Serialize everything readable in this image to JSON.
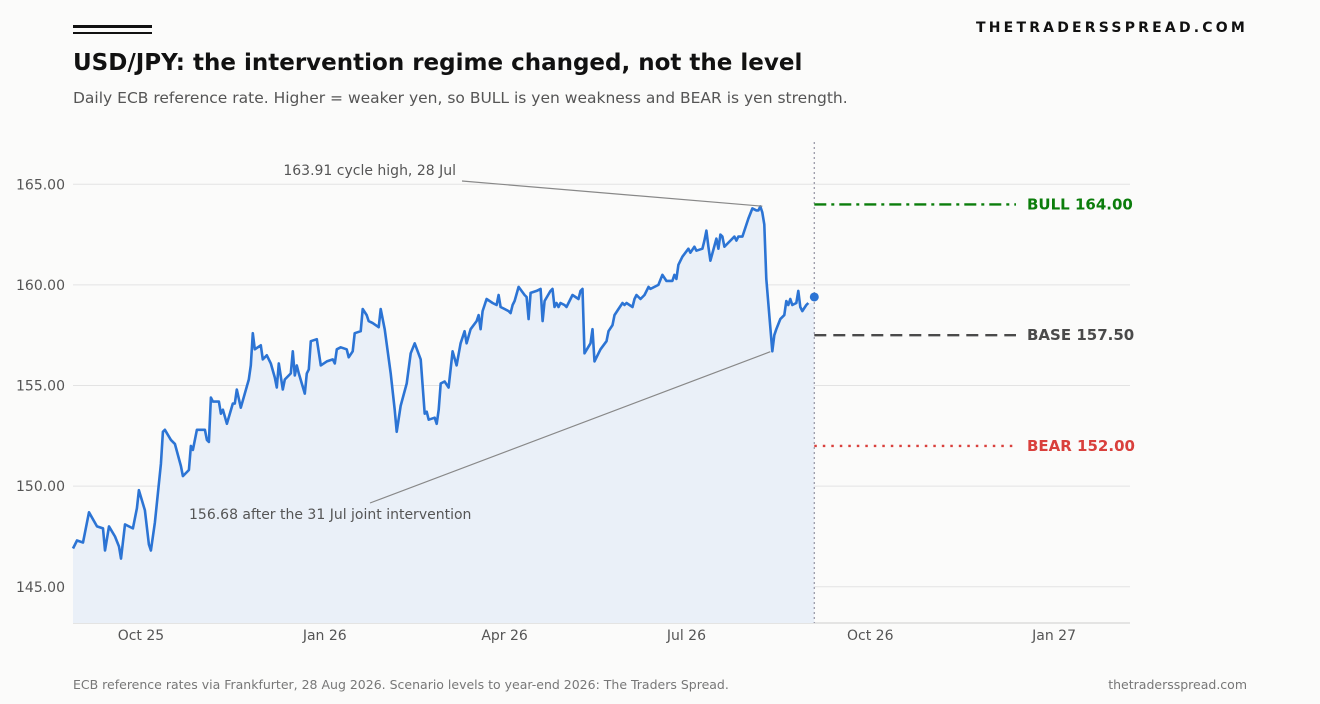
{
  "header": {
    "brand": "THETRADERSSPREAD.COM",
    "title": "USD/JPY: the intervention regime changed, not the level",
    "subtitle": "Daily ECB reference rate. Higher = weaker yen, so BULL is yen weakness and BEAR is yen strength."
  },
  "footer": {
    "source": "ECB reference rates via Frankfurter, 28 Aug 2026. Scenario levels to year-end 2026: The Traders Spread.",
    "site": "thetradersspread.com"
  },
  "colors": {
    "line": "#2c74d4",
    "fill": "#eaf0f8",
    "bull": "#0b7d0b",
    "base": "#4a4a4a",
    "bear": "#d9403c",
    "grid": "#e3e3e3",
    "annotation": "#888888"
  },
  "chart_data": {
    "type": "line",
    "x_axis": {
      "ticks": [
        {
          "date": "2025-10-01",
          "label": "Oct 25"
        },
        {
          "date": "2026-01-01",
          "label": "Jan 26"
        },
        {
          "date": "2026-04-01",
          "label": "Apr 26"
        },
        {
          "date": "2026-07-01",
          "label": "Jul 26"
        },
        {
          "date": "2026-10-01",
          "label": "Oct 26"
        },
        {
          "date": "2027-01-01",
          "label": "Jan 27"
        }
      ],
      "range": [
        "2025-08-28",
        "2027-02-08"
      ]
    },
    "y_axis": {
      "ticks": [
        {
          "value": 145,
          "label": "145.00"
        },
        {
          "value": 150,
          "label": "150.00"
        },
        {
          "value": 155,
          "label": "155.00"
        },
        {
          "value": 160,
          "label": "160.00"
        },
        {
          "value": 165,
          "label": "165.00"
        }
      ],
      "ylim": [
        143.2,
        167.1
      ],
      "grid": true
    },
    "series": [
      {
        "points": [
          [
            "2025-08-28",
            146.9
          ],
          [
            "2025-08-30",
            147.3
          ],
          [
            "2025-09-02",
            147.2
          ],
          [
            "2025-09-05",
            148.7
          ],
          [
            "2025-09-09",
            148.0
          ],
          [
            "2025-09-12",
            147.9
          ],
          [
            "2025-09-13",
            146.8
          ],
          [
            "2025-09-15",
            148.0
          ],
          [
            "2025-09-18",
            147.5
          ],
          [
            "2025-09-20",
            147.0
          ],
          [
            "2025-09-21",
            146.4
          ],
          [
            "2025-09-23",
            148.1
          ],
          [
            "2025-09-27",
            147.9
          ],
          [
            "2025-09-29",
            148.9
          ],
          [
            "2025-09-30",
            149.8
          ],
          [
            "2025-10-03",
            148.8
          ],
          [
            "2025-10-05",
            147.1
          ],
          [
            "2025-10-06",
            146.8
          ],
          [
            "2025-10-08",
            148.2
          ],
          [
            "2025-10-11",
            151.1
          ],
          [
            "2025-10-12",
            152.7
          ],
          [
            "2025-10-13",
            152.8
          ],
          [
            "2025-10-16",
            152.3
          ],
          [
            "2025-10-18",
            152.1
          ],
          [
            "2025-10-21",
            151.0
          ],
          [
            "2025-10-22",
            150.5
          ],
          [
            "2025-10-25",
            150.8
          ],
          [
            "2025-10-26",
            152.0
          ],
          [
            "2025-10-27",
            151.8
          ],
          [
            "2025-10-29",
            152.8
          ],
          [
            "2025-11-02",
            152.8
          ],
          [
            "2025-11-03",
            152.3
          ],
          [
            "2025-11-04",
            152.2
          ],
          [
            "2025-11-05",
            154.4
          ],
          [
            "2025-11-06",
            154.2
          ],
          [
            "2025-11-09",
            154.2
          ],
          [
            "2025-11-10",
            153.6
          ],
          [
            "2025-11-11",
            153.8
          ],
          [
            "2025-11-13",
            153.1
          ],
          [
            "2025-11-16",
            154.1
          ],
          [
            "2025-11-17",
            154.1
          ],
          [
            "2025-11-18",
            154.8
          ],
          [
            "2025-11-20",
            153.9
          ],
          [
            "2025-11-24",
            155.3
          ],
          [
            "2025-11-25",
            156.0
          ],
          [
            "2025-11-26",
            157.6
          ],
          [
            "2025-11-27",
            156.8
          ],
          [
            "2025-11-30",
            157.0
          ],
          [
            "2025-12-01",
            156.3
          ],
          [
            "2025-12-03",
            156.5
          ],
          [
            "2025-12-05",
            156.1
          ],
          [
            "2025-12-07",
            155.4
          ],
          [
            "2025-12-08",
            154.9
          ],
          [
            "2025-12-09",
            156.1
          ],
          [
            "2025-12-11",
            154.8
          ],
          [
            "2025-12-12",
            155.3
          ],
          [
            "2025-12-15",
            155.6
          ],
          [
            "2025-12-16",
            156.7
          ],
          [
            "2025-12-17",
            155.5
          ],
          [
            "2025-12-18",
            156.0
          ],
          [
            "2025-12-19",
            155.6
          ],
          [
            "2025-12-22",
            154.6
          ],
          [
            "2025-12-23",
            155.6
          ],
          [
            "2025-12-24",
            155.8
          ],
          [
            "2025-12-25",
            157.2
          ],
          [
            "2025-12-28",
            157.3
          ],
          [
            "2025-12-30",
            156.0
          ],
          [
            "2026-01-02",
            156.2
          ],
          [
            "2026-01-05",
            156.3
          ],
          [
            "2026-01-06",
            156.1
          ],
          [
            "2026-01-07",
            156.8
          ],
          [
            "2026-01-09",
            156.9
          ],
          [
            "2026-01-12",
            156.8
          ],
          [
            "2026-01-13",
            156.4
          ],
          [
            "2026-01-15",
            156.7
          ],
          [
            "2026-01-16",
            157.6
          ],
          [
            "2026-01-19",
            157.7
          ],
          [
            "2026-01-20",
            158.8
          ],
          [
            "2026-01-22",
            158.5
          ],
          [
            "2026-01-23",
            158.2
          ],
          [
            "2026-01-25",
            158.1
          ],
          [
            "2026-01-28",
            157.9
          ],
          [
            "2026-01-29",
            158.8
          ],
          [
            "2026-01-31",
            157.8
          ],
          [
            "2026-02-03",
            155.6
          ],
          [
            "2026-02-05",
            153.8
          ],
          [
            "2026-02-06",
            152.7
          ],
          [
            "2026-02-08",
            154.0
          ],
          [
            "2026-02-11",
            155.1
          ],
          [
            "2026-02-13",
            156.6
          ],
          [
            "2026-02-15",
            157.1
          ],
          [
            "2026-02-18",
            156.3
          ],
          [
            "2026-02-20",
            153.6
          ],
          [
            "2026-02-21",
            153.7
          ],
          [
            "2026-02-22",
            153.3
          ],
          [
            "2026-02-25",
            153.4
          ],
          [
            "2026-02-26",
            153.1
          ],
          [
            "2026-02-27",
            153.8
          ],
          [
            "2026-02-28",
            155.1
          ],
          [
            "2026-03-02",
            155.2
          ],
          [
            "2026-03-04",
            154.9
          ],
          [
            "2026-03-06",
            156.7
          ],
          [
            "2026-03-08",
            156.0
          ],
          [
            "2026-03-10",
            157.1
          ],
          [
            "2026-03-12",
            157.7
          ],
          [
            "2026-03-13",
            157.1
          ],
          [
            "2026-03-15",
            157.8
          ],
          [
            "2026-03-18",
            158.2
          ],
          [
            "2026-03-19",
            158.5
          ],
          [
            "2026-03-20",
            157.8
          ],
          [
            "2026-03-21",
            158.7
          ],
          [
            "2026-03-23",
            159.3
          ],
          [
            "2026-03-26",
            159.1
          ],
          [
            "2026-03-28",
            159.0
          ],
          [
            "2026-03-29",
            159.5
          ],
          [
            "2026-03-30",
            158.9
          ],
          [
            "2026-04-01",
            158.8
          ],
          [
            "2026-04-03",
            158.7
          ],
          [
            "2026-04-04",
            158.6
          ],
          [
            "2026-04-05",
            159.0
          ],
          [
            "2026-04-06",
            159.2
          ],
          [
            "2026-04-08",
            159.9
          ],
          [
            "2026-04-11",
            159.5
          ],
          [
            "2026-04-12",
            159.4
          ],
          [
            "2026-04-13",
            158.3
          ],
          [
            "2026-04-14",
            159.6
          ],
          [
            "2026-04-17",
            159.7
          ],
          [
            "2026-04-19",
            159.8
          ],
          [
            "2026-04-20",
            158.2
          ],
          [
            "2026-04-21",
            159.2
          ],
          [
            "2026-04-24",
            159.7
          ],
          [
            "2026-04-25",
            159.8
          ],
          [
            "2026-04-26",
            158.9
          ],
          [
            "2026-04-27",
            159.1
          ],
          [
            "2026-04-28",
            158.9
          ],
          [
            "2026-04-29",
            159.1
          ],
          [
            "2026-05-01",
            159.0
          ],
          [
            "2026-05-02",
            158.9
          ],
          [
            "2026-05-03",
            159.1
          ],
          [
            "2026-05-05",
            159.5
          ],
          [
            "2026-05-08",
            159.3
          ],
          [
            "2026-05-09",
            159.7
          ],
          [
            "2026-05-10",
            159.8
          ],
          [
            "2026-05-11",
            156.6
          ],
          [
            "2026-05-14",
            157.1
          ],
          [
            "2026-05-15",
            157.8
          ],
          [
            "2026-05-16",
            156.2
          ],
          [
            "2026-05-18",
            156.6
          ],
          [
            "2026-05-19",
            156.8
          ],
          [
            "2026-05-22",
            157.2
          ],
          [
            "2026-05-23",
            157.7
          ],
          [
            "2026-05-25",
            158.0
          ],
          [
            "2026-05-26",
            158.5
          ],
          [
            "2026-05-28",
            158.8
          ],
          [
            "2026-05-30",
            159.1
          ],
          [
            "2026-05-31",
            159.0
          ],
          [
            "2026-06-01",
            159.1
          ],
          [
            "2026-06-04",
            158.9
          ],
          [
            "2026-06-05",
            159.3
          ],
          [
            "2026-06-06",
            159.5
          ],
          [
            "2026-06-08",
            159.3
          ],
          [
            "2026-06-10",
            159.5
          ],
          [
            "2026-06-12",
            159.9
          ],
          [
            "2026-06-13",
            159.8
          ],
          [
            "2026-06-17",
            160.0
          ],
          [
            "2026-06-19",
            160.5
          ],
          [
            "2026-06-21",
            160.2
          ],
          [
            "2026-06-24",
            160.2
          ],
          [
            "2026-06-25",
            160.5
          ],
          [
            "2026-06-26",
            160.3
          ],
          [
            "2026-06-27",
            161.0
          ],
          [
            "2026-06-29",
            161.4
          ],
          [
            "2026-07-02",
            161.8
          ],
          [
            "2026-07-03",
            161.6
          ],
          [
            "2026-07-05",
            161.9
          ],
          [
            "2026-07-06",
            161.7
          ],
          [
            "2026-07-09",
            161.8
          ],
          [
            "2026-07-10",
            162.2
          ],
          [
            "2026-07-11",
            162.7
          ],
          [
            "2026-07-12",
            161.9
          ],
          [
            "2026-07-13",
            161.2
          ],
          [
            "2026-07-16",
            162.3
          ],
          [
            "2026-07-17",
            161.8
          ],
          [
            "2026-07-18",
            162.5
          ],
          [
            "2026-07-19",
            162.4
          ],
          [
            "2026-07-20",
            161.9
          ],
          [
            "2026-07-23",
            162.2
          ],
          [
            "2026-07-25",
            162.4
          ],
          [
            "2026-07-26",
            162.2
          ],
          [
            "2026-07-27",
            162.4
          ],
          [
            "2026-07-29",
            162.4
          ],
          [
            "2026-08-01",
            163.3
          ],
          [
            "2026-08-03",
            163.8
          ],
          [
            "2026-08-05",
            163.7
          ],
          [
            "2026-08-06",
            163.7
          ],
          [
            "2026-08-07",
            163.9
          ],
          [
            "2026-08-08",
            163.6
          ],
          [
            "2026-08-09",
            163.0
          ],
          [
            "2026-08-10",
            160.3
          ],
          [
            "2026-08-13",
            156.7
          ],
          [
            "2026-08-14",
            157.5
          ],
          [
            "2026-08-15",
            157.8
          ],
          [
            "2026-08-17",
            158.3
          ],
          [
            "2026-08-19",
            158.5
          ],
          [
            "2026-08-20",
            159.2
          ],
          [
            "2026-08-21",
            159.0
          ],
          [
            "2026-08-22",
            159.3
          ],
          [
            "2026-08-23",
            159.0
          ],
          [
            "2026-08-25",
            159.1
          ],
          [
            "2026-08-26",
            159.7
          ],
          [
            "2026-08-27",
            158.9
          ],
          [
            "2026-08-28",
            158.7
          ],
          [
            "2026-08-30",
            159.0
          ],
          [
            "2026-08-31",
            159.1
          ]
        ]
      }
    ],
    "last_point": {
      "date": "2026-09-03",
      "value": 159.4
    },
    "forecast_start": "2026-09-03",
    "scenarios": [
      {
        "label": "BULL",
        "value_label": "164.00",
        "value": 164.0,
        "style": "dashdot",
        "color_key": "bull"
      },
      {
        "label": "BASE",
        "value_label": "157.50",
        "value": 157.5,
        "style": "dashed",
        "color_key": "base"
      },
      {
        "label": "BEAR",
        "value_label": "152.00",
        "value": 152.0,
        "style": "dotted",
        "color_key": "bear"
      }
    ],
    "annotations": [
      {
        "text": "163.91 cycle high, 28 Jul",
        "point_date": "2026-08-06",
        "point_value": 163.91,
        "anchor": "above-left"
      },
      {
        "text": "156.68 after the 31 Jul joint intervention",
        "point_date": "2026-08-13",
        "point_value": 156.68,
        "anchor": "below-left"
      }
    ]
  }
}
